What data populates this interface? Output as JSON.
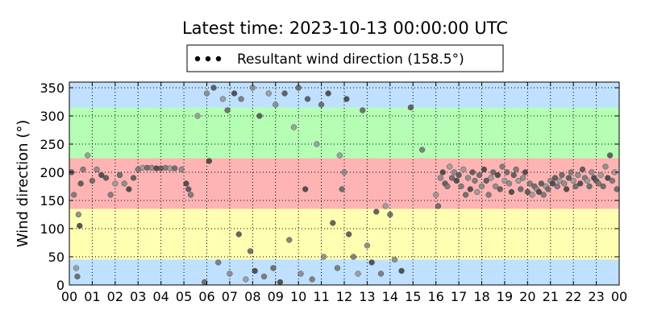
{
  "chart_data": {
    "type": "scatter",
    "title": "Latest time: 2023-10-13 00:00:00 UTC",
    "xlabel": "",
    "ylabel": "Wind direction (°)",
    "xlim": [
      0,
      24
    ],
    "ylim": [
      0,
      360
    ],
    "xticks": [
      0,
      1,
      2,
      3,
      4,
      5,
      6,
      7,
      8,
      9,
      10,
      11,
      12,
      13,
      14,
      15,
      16,
      17,
      18,
      19,
      20,
      21,
      22,
      23,
      24
    ],
    "xtick_labels": [
      "00",
      "01",
      "02",
      "03",
      "04",
      "05",
      "06",
      "07",
      "08",
      "09",
      "10",
      "11",
      "12",
      "13",
      "14",
      "15",
      "16",
      "17",
      "18",
      "19",
      "20",
      "21",
      "22",
      "23",
      "00"
    ],
    "yticks": [
      0,
      50,
      100,
      150,
      200,
      250,
      300,
      350
    ],
    "grid": true,
    "legend": {
      "label": "Resultant wind direction (158.5°)",
      "placement": "top-center"
    },
    "bands": [
      {
        "from": 0,
        "to": 45,
        "color": "#bfe0ff"
      },
      {
        "from": 45,
        "to": 135,
        "color": "#ffffb2"
      },
      {
        "from": 135,
        "to": 225,
        "color": "#ffb4b4"
      },
      {
        "from": 225,
        "to": 315,
        "color": "#b4ffb4"
      },
      {
        "from": 315,
        "to": 360,
        "color": "#bfe0ff"
      }
    ],
    "series": [
      {
        "points": [
          {
            "x": 0.1,
            "y": 200
          },
          {
            "x": 0.2,
            "y": 160
          },
          {
            "x": 0.3,
            "y": 30
          },
          {
            "x": 0.35,
            "y": 15
          },
          {
            "x": 0.4,
            "y": 125
          },
          {
            "x": 0.45,
            "y": 105
          },
          {
            "x": 0.5,
            "y": 180
          },
          {
            "x": 0.6,
            "y": 205
          },
          {
            "x": 0.8,
            "y": 230
          },
          {
            "x": 1.0,
            "y": 185
          },
          {
            "x": 1.2,
            "y": 205
          },
          {
            "x": 1.4,
            "y": 195
          },
          {
            "x": 1.6,
            "y": 190
          },
          {
            "x": 1.8,
            "y": 160
          },
          {
            "x": 2.0,
            "y": 180
          },
          {
            "x": 2.2,
            "y": 195
          },
          {
            "x": 2.4,
            "y": 180
          },
          {
            "x": 2.6,
            "y": 170
          },
          {
            "x": 2.8,
            "y": 190
          },
          {
            "x": 3.0,
            "y": 205
          },
          {
            "x": 3.2,
            "y": 208
          },
          {
            "x": 3.4,
            "y": 208
          },
          {
            "x": 3.6,
            "y": 208
          },
          {
            "x": 3.8,
            "y": 207
          },
          {
            "x": 4.0,
            "y": 207
          },
          {
            "x": 4.2,
            "y": 208
          },
          {
            "x": 4.4,
            "y": 207
          },
          {
            "x": 4.6,
            "y": 207
          },
          {
            "x": 4.9,
            "y": 205
          },
          {
            "x": 5.1,
            "y": 180
          },
          {
            "x": 5.2,
            "y": 170
          },
          {
            "x": 5.3,
            "y": 160
          },
          {
            "x": 5.6,
            "y": 300
          },
          {
            "x": 5.9,
            "y": 5
          },
          {
            "x": 6.0,
            "y": 340
          },
          {
            "x": 6.1,
            "y": 220
          },
          {
            "x": 6.3,
            "y": 350
          },
          {
            "x": 6.5,
            "y": 40
          },
          {
            "x": 6.7,
            "y": 330
          },
          {
            "x": 6.9,
            "y": 310
          },
          {
            "x": 7.0,
            "y": 20
          },
          {
            "x": 7.2,
            "y": 340
          },
          {
            "x": 7.4,
            "y": 90
          },
          {
            "x": 7.5,
            "y": 330
          },
          {
            "x": 7.7,
            "y": 10
          },
          {
            "x": 7.9,
            "y": 60
          },
          {
            "x": 8.0,
            "y": 350
          },
          {
            "x": 8.1,
            "y": 25
          },
          {
            "x": 8.3,
            "y": 300
          },
          {
            "x": 8.5,
            "y": 15
          },
          {
            "x": 8.7,
            "y": 340
          },
          {
            "x": 8.9,
            "y": 30
          },
          {
            "x": 9.0,
            "y": 320
          },
          {
            "x": 9.2,
            "y": 5
          },
          {
            "x": 9.4,
            "y": 340
          },
          {
            "x": 9.6,
            "y": 80
          },
          {
            "x": 9.8,
            "y": 280
          },
          {
            "x": 10.0,
            "y": 350
          },
          {
            "x": 10.1,
            "y": 20
          },
          {
            "x": 10.3,
            "y": 170
          },
          {
            "x": 10.4,
            "y": 330
          },
          {
            "x": 10.6,
            "y": 10
          },
          {
            "x": 10.8,
            "y": 250
          },
          {
            "x": 11.0,
            "y": 320
          },
          {
            "x": 11.1,
            "y": 50
          },
          {
            "x": 11.3,
            "y": 340
          },
          {
            "x": 11.5,
            "y": 110
          },
          {
            "x": 11.7,
            "y": 30
          },
          {
            "x": 11.8,
            "y": 230
          },
          {
            "x": 11.9,
            "y": 170
          },
          {
            "x": 12.0,
            "y": 200
          },
          {
            "x": 12.1,
            "y": 330
          },
          {
            "x": 12.2,
            "y": 90
          },
          {
            "x": 12.4,
            "y": 50
          },
          {
            "x": 12.6,
            "y": 20
          },
          {
            "x": 12.8,
            "y": 310
          },
          {
            "x": 13.0,
            "y": 70
          },
          {
            "x": 13.2,
            "y": 40
          },
          {
            "x": 13.4,
            "y": 130
          },
          {
            "x": 13.6,
            "y": 20
          },
          {
            "x": 13.8,
            "y": 140
          },
          {
            "x": 14.0,
            "y": 125
          },
          {
            "x": 14.2,
            "y": 45
          },
          {
            "x": 14.5,
            "y": 25
          },
          {
            "x": 14.9,
            "y": 315
          },
          {
            "x": 15.4,
            "y": 240
          },
          {
            "x": 16.0,
            "y": 160
          },
          {
            "x": 16.1,
            "y": 140
          },
          {
            "x": 16.2,
            "y": 190
          },
          {
            "x": 16.3,
            "y": 200
          },
          {
            "x": 16.4,
            "y": 180
          },
          {
            "x": 16.5,
            "y": 175
          },
          {
            "x": 16.6,
            "y": 210
          },
          {
            "x": 16.7,
            "y": 190
          },
          {
            "x": 16.8,
            "y": 200
          },
          {
            "x": 16.9,
            "y": 185
          },
          {
            "x": 17.0,
            "y": 195
          },
          {
            "x": 17.1,
            "y": 175
          },
          {
            "x": 17.2,
            "y": 205
          },
          {
            "x": 17.3,
            "y": 160
          },
          {
            "x": 17.4,
            "y": 190
          },
          {
            "x": 17.5,
            "y": 170
          },
          {
            "x": 17.6,
            "y": 200
          },
          {
            "x": 17.7,
            "y": 185
          },
          {
            "x": 17.8,
            "y": 165
          },
          {
            "x": 17.9,
            "y": 195
          },
          {
            "x": 18.0,
            "y": 175
          },
          {
            "x": 18.1,
            "y": 205
          },
          {
            "x": 18.2,
            "y": 185
          },
          {
            "x": 18.3,
            "y": 160
          },
          {
            "x": 18.4,
            "y": 190
          },
          {
            "x": 18.5,
            "y": 200
          },
          {
            "x": 18.6,
            "y": 175
          },
          {
            "x": 18.7,
            "y": 195
          },
          {
            "x": 18.8,
            "y": 170
          },
          {
            "x": 18.9,
            "y": 210
          },
          {
            "x": 19.0,
            "y": 185
          },
          {
            "x": 19.1,
            "y": 200
          },
          {
            "x": 19.2,
            "y": 180
          },
          {
            "x": 19.3,
            "y": 165
          },
          {
            "x": 19.4,
            "y": 195
          },
          {
            "x": 19.5,
            "y": 205
          },
          {
            "x": 19.6,
            "y": 185
          },
          {
            "x": 19.7,
            "y": 170
          },
          {
            "x": 19.8,
            "y": 190
          },
          {
            "x": 19.9,
            "y": 200
          },
          {
            "x": 20.0,
            "y": 165
          },
          {
            "x": 20.1,
            "y": 180
          },
          {
            "x": 20.2,
            "y": 160
          },
          {
            "x": 20.3,
            "y": 175
          },
          {
            "x": 20.4,
            "y": 170
          },
          {
            "x": 20.5,
            "y": 165
          },
          {
            "x": 20.6,
            "y": 180
          },
          {
            "x": 20.7,
            "y": 160
          },
          {
            "x": 20.8,
            "y": 175
          },
          {
            "x": 20.9,
            "y": 170
          },
          {
            "x": 21.0,
            "y": 185
          },
          {
            "x": 21.1,
            "y": 180
          },
          {
            "x": 21.2,
            "y": 190
          },
          {
            "x": 21.3,
            "y": 175
          },
          {
            "x": 21.4,
            "y": 185
          },
          {
            "x": 21.5,
            "y": 195
          },
          {
            "x": 21.6,
            "y": 180
          },
          {
            "x": 21.7,
            "y": 170
          },
          {
            "x": 21.8,
            "y": 190
          },
          {
            "x": 21.9,
            "y": 200
          },
          {
            "x": 22.0,
            "y": 185
          },
          {
            "x": 22.1,
            "y": 175
          },
          {
            "x": 22.2,
            "y": 195
          },
          {
            "x": 22.3,
            "y": 180
          },
          {
            "x": 22.4,
            "y": 205
          },
          {
            "x": 22.5,
            "y": 190
          },
          {
            "x": 22.6,
            "y": 185
          },
          {
            "x": 22.7,
            "y": 175
          },
          {
            "x": 22.8,
            "y": 200
          },
          {
            "x": 22.9,
            "y": 190
          },
          {
            "x": 23.0,
            "y": 185
          },
          {
            "x": 23.1,
            "y": 180
          },
          {
            "x": 23.2,
            "y": 195
          },
          {
            "x": 23.3,
            "y": 175
          },
          {
            "x": 23.4,
            "y": 210
          },
          {
            "x": 23.5,
            "y": 190
          },
          {
            "x": 23.6,
            "y": 230
          },
          {
            "x": 23.7,
            "y": 185
          },
          {
            "x": 23.8,
            "y": 200
          },
          {
            "x": 23.9,
            "y": 170
          }
        ]
      }
    ]
  }
}
